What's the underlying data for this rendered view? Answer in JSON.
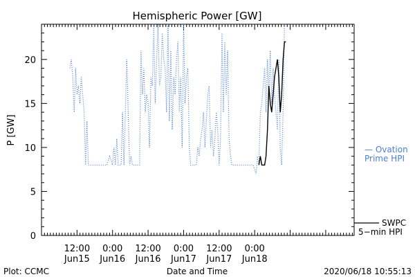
{
  "chart_data": {
    "type": "line",
    "title": "Hemispheric Power [GW]",
    "xlabel": "Date and Time",
    "ylabel": "P [GW]",
    "ylim": [
      0,
      24
    ],
    "xlim": [
      -0.5,
      3.9
    ],
    "x_unit": "days relative to Jun15 12:00",
    "grid": false,
    "y_ticks": [
      0,
      5,
      10,
      15,
      20
    ],
    "x_ticks": [
      {
        "x": 0.0,
        "time": "12:00",
        "date": "Jun15"
      },
      {
        "x": 0.5,
        "time": "0:00",
        "date": "Jun16"
      },
      {
        "x": 1.0,
        "time": "12:00",
        "date": "Jun16"
      },
      {
        "x": 1.5,
        "time": "0:00",
        "date": "Jun17"
      },
      {
        "x": 2.0,
        "time": "12:00",
        "date": "Jun17"
      },
      {
        "x": 2.5,
        "time": "0:00",
        "date": "Jun18"
      }
    ],
    "series": [
      {
        "name": "Ovation Prime HPI",
        "color": "#4a7fd4",
        "style": "dotted",
        "x": [
          -0.1,
          -0.08,
          -0.06,
          -0.04,
          -0.02,
          0.0,
          0.02,
          0.04,
          0.06,
          0.08,
          0.1,
          0.12,
          0.14,
          0.16,
          0.18,
          0.2,
          0.22,
          0.24,
          0.26,
          0.3,
          0.34,
          0.38,
          0.42,
          0.46,
          0.5,
          0.52,
          0.54,
          0.56,
          0.58,
          0.6,
          0.62,
          0.64,
          0.66,
          0.7,
          0.74,
          0.76,
          0.78,
          0.8,
          0.82,
          0.84,
          0.86,
          0.88,
          0.9,
          0.92,
          0.94,
          0.96,
          0.98,
          1.0,
          1.02,
          1.04,
          1.06,
          1.08,
          1.1,
          1.12,
          1.14,
          1.16,
          1.18,
          1.2,
          1.22,
          1.24,
          1.26,
          1.28,
          1.3,
          1.32,
          1.34,
          1.36,
          1.38,
          1.4,
          1.42,
          1.44,
          1.46,
          1.48,
          1.5,
          1.52,
          1.54,
          1.56,
          1.58,
          1.6,
          1.62,
          1.64,
          1.66,
          1.68,
          1.7,
          1.72,
          1.74,
          1.76,
          1.78,
          1.8,
          1.82,
          1.84,
          1.86,
          1.88,
          1.9,
          1.92,
          1.94,
          1.96,
          1.98,
          2.0,
          2.02,
          2.04,
          2.06,
          2.08,
          2.1,
          2.12,
          2.14,
          2.16,
          2.18,
          2.2,
          2.24,
          2.28,
          2.32,
          2.36,
          2.4,
          2.44,
          2.48,
          2.52,
          2.54,
          2.56,
          2.58,
          2.6,
          2.62,
          2.64,
          2.66,
          2.68,
          2.7,
          2.72,
          2.74,
          2.76,
          2.78,
          2.8,
          2.82,
          2.84,
          2.86,
          2.88,
          2.9,
          2.92
        ],
        "values": [
          19,
          20,
          18,
          14,
          19,
          16,
          17,
          15,
          18,
          16,
          14,
          8,
          13,
          8,
          8,
          8,
          8,
          8,
          8,
          8,
          8,
          8,
          8,
          9,
          8,
          10,
          8,
          11,
          8,
          8,
          8,
          14,
          8,
          20,
          8,
          9,
          8,
          8,
          8,
          8,
          8,
          8,
          21,
          16,
          19,
          14,
          16,
          15,
          10,
          18,
          17,
          24,
          15,
          20,
          24,
          17,
          18,
          23,
          20,
          19,
          14,
          24,
          13,
          21,
          12,
          18,
          16,
          20,
          22,
          14,
          18,
          10,
          24,
          15,
          18,
          19,
          10,
          8,
          8,
          8,
          8,
          8,
          10,
          9,
          11,
          12,
          14,
          10,
          13,
          16,
          17,
          10,
          12,
          9,
          11,
          14,
          12,
          8,
          11,
          23,
          14,
          22,
          16,
          21,
          11,
          9,
          8,
          8,
          8,
          8,
          8,
          8,
          8,
          8,
          8,
          7,
          9,
          8,
          14,
          15,
          17,
          19,
          14,
          20,
          16,
          21,
          15,
          19,
          16,
          14,
          12,
          20,
          10,
          8,
          14,
          24
        ]
      },
      {
        "name": "SWPC 5-min HPI",
        "color": "#000000",
        "style": "solid",
        "x": [
          2.56,
          2.58,
          2.6,
          2.62,
          2.64,
          2.66,
          2.68,
          2.7,
          2.72,
          2.74,
          2.76,
          2.78,
          2.8,
          2.82,
          2.84,
          2.86,
          2.88,
          2.9,
          2.92,
          2.94
        ],
        "values": [
          8,
          9,
          8,
          8,
          8,
          9,
          12,
          17,
          15,
          14,
          16,
          18,
          19,
          20,
          18,
          14,
          16,
          20,
          22,
          22
        ]
      }
    ]
  },
  "labels": {
    "legend_ovation_line1": "— Ovation",
    "legend_ovation_line2": "Prime HPI",
    "legend_swpc_line1": "SWPC",
    "legend_swpc_line2": "5−min HPI",
    "plot_credit": "Plot: CCMC",
    "timestamp": "2020/06/18 10:55:13"
  }
}
